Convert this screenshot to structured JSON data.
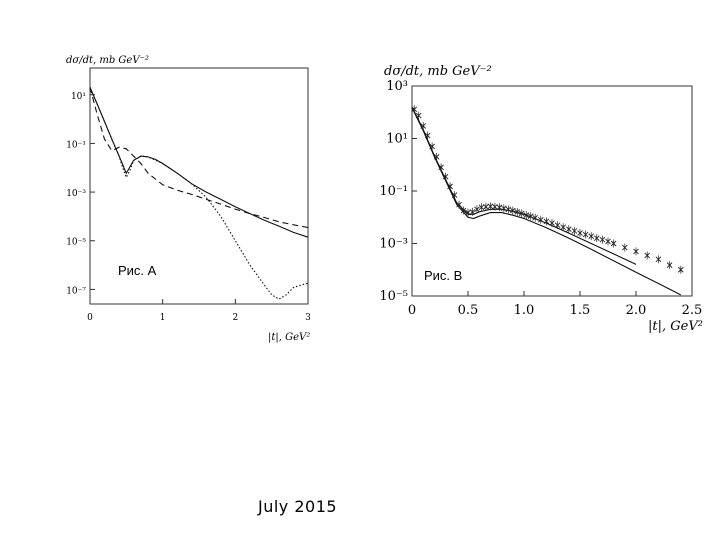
{
  "footer": {
    "date": "July  2015"
  },
  "chart_data": [
    {
      "type": "line",
      "label": "Рис. A",
      "ylabel": "dσ/dt, mb GeV⁻²",
      "xlabel": "|t|, GeV²",
      "xlim": [
        0,
        3
      ],
      "ylim_log10": [
        -7.6,
        2.1
      ],
      "y_scale": "log",
      "x_ticks": [
        0,
        1,
        2,
        3
      ],
      "y_ticks": [
        "10¹",
        "10⁻¹",
        "10⁻³",
        "10⁻⁵",
        "10⁻⁷"
      ],
      "y_tick_exp": [
        1,
        -1,
        -3,
        -5,
        -7
      ],
      "series": [
        {
          "style": "solid",
          "x": [
            0,
            0.1,
            0.2,
            0.3,
            0.4,
            0.5,
            0.6,
            0.7,
            0.8,
            0.9,
            1.0,
            1.2,
            1.4,
            1.6,
            1.8,
            2.0,
            2.2,
            2.4,
            2.6,
            2.8,
            3.0
          ],
          "y": [
            20,
            4,
            0.8,
            0.15,
            0.03,
            0.006,
            0.02,
            0.03,
            0.028,
            0.022,
            0.015,
            0.006,
            0.0022,
            0.001,
            0.0005,
            0.00025,
            0.00013,
            7e-05,
            4e-05,
            2.2e-05,
            1.4e-05
          ]
        },
        {
          "style": "dotted",
          "x": [
            0,
            0.1,
            0.2,
            0.3,
            0.4,
            0.45,
            0.5,
            0.55,
            0.6,
            0.7,
            0.8,
            1.0,
            1.2,
            1.4,
            1.6,
            1.8,
            2.0,
            2.2,
            2.4,
            2.5,
            2.6,
            2.7,
            2.8,
            2.9,
            3.0
          ],
          "y": [
            20,
            4,
            0.8,
            0.15,
            0.03,
            0.01,
            0.004,
            0.008,
            0.02,
            0.03,
            0.028,
            0.015,
            0.006,
            0.0022,
            0.0006,
            0.0001,
            1e-05,
            1e-06,
            1.5e-07,
            6e-08,
            4e-08,
            6e-08,
            1.2e-07,
            1.5e-07,
            1.8e-07
          ]
        },
        {
          "style": "dashed",
          "x": [
            0,
            0.1,
            0.2,
            0.3,
            0.4,
            0.5,
            0.6,
            0.7,
            0.8,
            1.0,
            1.2,
            1.4,
            1.6,
            1.8,
            2.0,
            2.2,
            2.4,
            2.6,
            2.8,
            3.0
          ],
          "y": [
            20,
            1.5,
            0.15,
            0.05,
            0.07,
            0.06,
            0.03,
            0.015,
            0.006,
            0.002,
            0.0012,
            0.0008,
            0.0005,
            0.00032,
            0.0002,
            0.00013,
            9e-05,
            6e-05,
            4.5e-05,
            3.5e-05
          ]
        }
      ]
    },
    {
      "type": "line",
      "label": "Рис. B",
      "ylabel": "dσ/dt, mb GeV⁻²",
      "xlabel": "|t|, GeV²",
      "xlim": [
        0,
        2.5
      ],
      "ylim_log10": [
        -5,
        3
      ],
      "y_scale": "log",
      "x_ticks": [
        0,
        0.5,
        1.0,
        1.5,
        2.0,
        2.5
      ],
      "x_tick_labels": [
        "0",
        "0.5",
        "1.0",
        "1.5",
        "2.0",
        "2.5"
      ],
      "y_ticks": [
        "10³",
        "10¹",
        "10⁻¹",
        "10⁻³",
        "10⁻⁵"
      ],
      "y_tick_exp": [
        3,
        1,
        -1,
        -3,
        -5
      ],
      "series": [
        {
          "style": "solid",
          "x": [
            0,
            0.1,
            0.2,
            0.3,
            0.4,
            0.5,
            0.55,
            0.6,
            0.7,
            0.8,
            0.9,
            1.0,
            1.2,
            1.4,
            1.6,
            1.8,
            2.0,
            2.2,
            2.4
          ],
          "y": [
            150,
            20,
            2,
            0.25,
            0.03,
            0.01,
            0.009,
            0.011,
            0.015,
            0.015,
            0.012,
            0.009,
            0.004,
            0.0016,
            0.0006,
            0.00022,
            8e-05,
            3e-05,
            1.1e-05
          ]
        },
        {
          "style": "solid",
          "x": [
            0,
            0.1,
            0.2,
            0.3,
            0.4,
            0.5,
            0.55,
            0.6,
            0.7,
            0.8,
            0.9,
            1.0,
            1.2,
            1.4,
            1.6,
            1.8,
            2.0
          ],
          "y": [
            160,
            22,
            2.2,
            0.28,
            0.035,
            0.013,
            0.013,
            0.016,
            0.02,
            0.02,
            0.017,
            0.013,
            0.006,
            0.0025,
            0.001,
            0.0004,
            0.00016
          ]
        }
      ],
      "points": {
        "marker": "cross",
        "x": [
          0.02,
          0.06,
          0.1,
          0.14,
          0.18,
          0.22,
          0.26,
          0.3,
          0.34,
          0.38,
          0.42,
          0.46,
          0.5,
          0.54,
          0.58,
          0.62,
          0.66,
          0.7,
          0.74,
          0.78,
          0.82,
          0.86,
          0.9,
          0.94,
          0.98,
          1.02,
          1.06,
          1.1,
          1.15,
          1.2,
          1.25,
          1.3,
          1.35,
          1.4,
          1.45,
          1.5,
          1.55,
          1.6,
          1.65,
          1.7,
          1.75,
          1.8,
          1.9,
          2.0,
          2.1,
          2.2,
          2.3,
          2.4
        ],
        "y": [
          130,
          75,
          30,
          13,
          5,
          2,
          0.8,
          0.35,
          0.15,
          0.07,
          0.03,
          0.018,
          0.015,
          0.016,
          0.02,
          0.024,
          0.025,
          0.026,
          0.025,
          0.024,
          0.022,
          0.02,
          0.018,
          0.016,
          0.014,
          0.012,
          0.011,
          0.0095,
          0.008,
          0.007,
          0.006,
          0.005,
          0.0042,
          0.0035,
          0.003,
          0.0025,
          0.0022,
          0.0019,
          0.0016,
          0.0014,
          0.0012,
          0.001,
          0.0007,
          0.0005,
          0.00035,
          0.00025,
          0.00015,
          0.0001
        ]
      }
    }
  ]
}
